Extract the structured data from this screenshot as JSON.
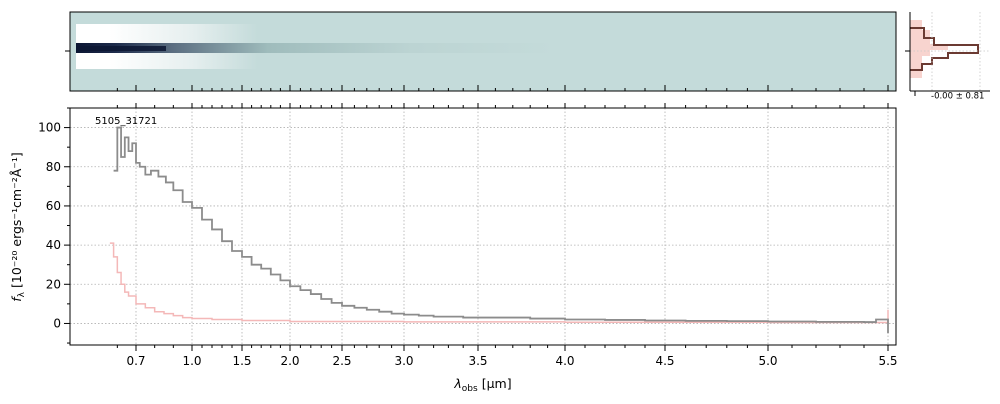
{
  "chart_data": [
    {
      "type": "heatmap",
      "panel": "2d-spectrum",
      "colormap": [
        "#c4dbda",
        "#ffffff",
        "#0c1633"
      ],
      "background_color": "#c4dbda"
    },
    {
      "type": "line",
      "panel": "cross-dispersion-profile",
      "annotation": "-0.00 ± 0.81",
      "colors": {
        "profile": "#6b3a32",
        "fill": "#f6c9c3"
      }
    },
    {
      "type": "line",
      "panel": "1d-spectrum",
      "annotation": "5105_31721",
      "xlabel_main": "λ",
      "xlabel_sub": "obs",
      "xlabel_unit": "[μm]",
      "ylabel_base": "f",
      "ylabel_sub": "λ",
      "ylabel_unit": "[10⁻²⁰ ergs⁻¹cm⁻²Å⁻¹]",
      "x_ticks": [
        "0.7",
        "1.0",
        "1.5",
        "2.0",
        "2.5",
        "3.0",
        "3.5",
        "4.0",
        "4.5",
        "5.0",
        "5.5"
      ],
      "x_tick_values": [
        0.7,
        1.0,
        1.5,
        2.0,
        2.5,
        3.0,
        3.5,
        4.0,
        4.5,
        5.0,
        5.5
      ],
      "y_ticks": [
        "0",
        "20",
        "40",
        "60",
        "80",
        "100"
      ],
      "ylim": [
        -11,
        110
      ],
      "xlim": [
        0.55,
        5.52
      ],
      "grid": true,
      "series": [
        {
          "color": "#8c8c8c",
          "x": [
            0.58,
            0.6,
            0.62,
            0.64,
            0.66,
            0.68,
            0.7,
            0.72,
            0.75,
            0.78,
            0.82,
            0.86,
            0.9,
            0.95,
            1.0,
            1.1,
            1.2,
            1.3,
            1.4,
            1.5,
            1.6,
            1.7,
            1.8,
            1.9,
            2.0,
            2.1,
            2.2,
            2.3,
            2.4,
            2.5,
            2.6,
            2.7,
            2.8,
            2.9,
            3.0,
            3.1,
            3.2,
            3.4,
            3.6,
            3.8,
            4.0,
            4.2,
            4.4,
            4.6,
            4.8,
            5.0,
            5.2,
            5.4,
            5.45,
            5.5
          ],
          "y": [
            78,
            100,
            85,
            95,
            88,
            92,
            82,
            80,
            76,
            78,
            75,
            72,
            68,
            62,
            59,
            53,
            48,
            42,
            37,
            34,
            30,
            28,
            25,
            22,
            19,
            17,
            15,
            12.5,
            10.5,
            9,
            8,
            7,
            6,
            5,
            4.5,
            4,
            3.5,
            3,
            3,
            2.5,
            2,
            1.8,
            1.5,
            1.3,
            1.2,
            1,
            0.8,
            0.7,
            2,
            -5
          ]
        },
        {
          "color": "#f4b8b8",
          "x": [
            0.56,
            0.58,
            0.6,
            0.62,
            0.64,
            0.66,
            0.7,
            0.75,
            0.8,
            0.85,
            0.9,
            0.95,
            1.0,
            1.2,
            1.5,
            2.0,
            3.0,
            4.0,
            5.0,
            5.4,
            5.5
          ],
          "y": [
            41,
            34,
            26,
            20,
            16,
            14,
            10,
            8,
            6,
            5,
            4,
            3,
            2.5,
            2,
            1.5,
            1,
            0.8,
            0.6,
            0.5,
            0.5,
            7
          ]
        }
      ]
    }
  ]
}
